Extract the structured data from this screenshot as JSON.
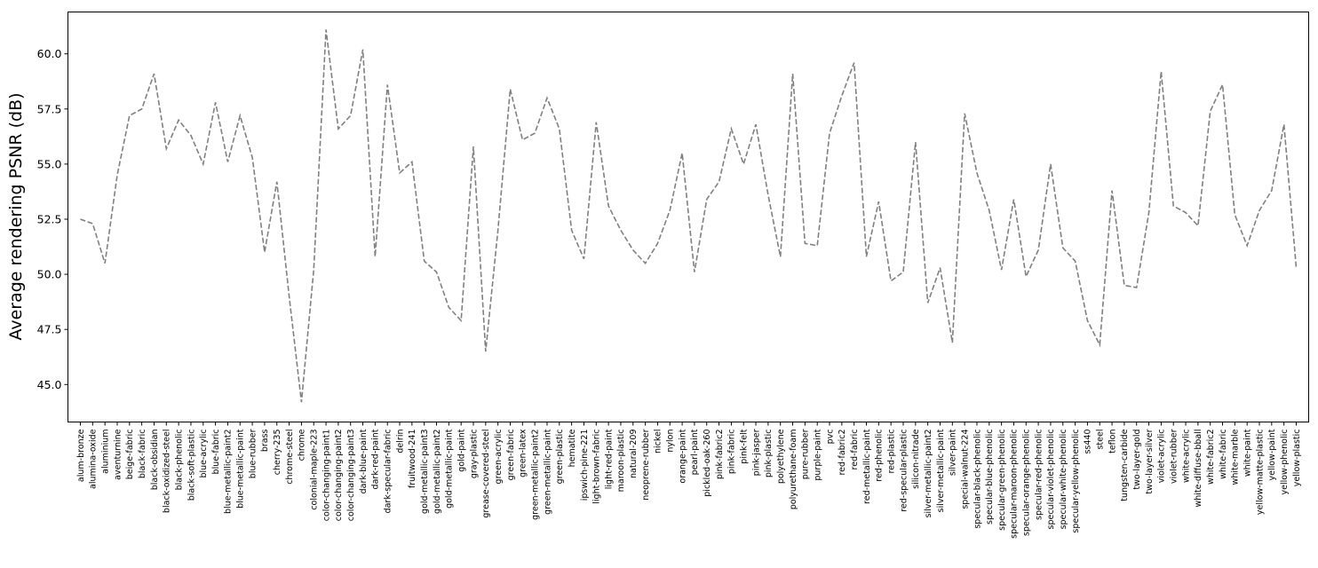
{
  "chart_data": {
    "type": "line",
    "title": "",
    "xlabel": "",
    "ylabel": "Average rendering PSNR (dB)",
    "ylim": [
      43.3,
      61.9
    ],
    "yticks": [
      45.0,
      47.5,
      50.0,
      52.5,
      55.0,
      57.5,
      60.0
    ],
    "grid": false,
    "legend": "none",
    "line_color": "#808080",
    "line_style": "dashed",
    "series": [
      {
        "values": [
          52.5,
          52.3,
          50.5,
          54.5,
          57.2,
          57.5,
          59.1,
          55.7,
          57.0,
          56.3,
          55.0,
          57.8,
          55.1,
          57.2,
          55.3,
          51.0,
          54.2,
          49.0,
          44.2,
          50.2,
          61.1,
          56.6,
          57.2,
          60.2,
          50.8,
          58.6,
          54.6,
          55.1,
          50.6,
          50.1,
          48.5,
          47.9,
          55.8,
          46.5,
          52.0,
          58.4,
          56.1,
          56.4,
          58.0,
          56.6,
          52.0,
          50.7,
          56.9,
          53.1,
          52.0,
          51.1,
          50.5,
          51.4,
          52.9,
          55.5,
          50.1,
          53.4,
          54.2,
          56.6,
          55.0,
          56.8,
          53.6,
          50.8,
          59.1,
          51.4,
          51.3,
          56.4,
          58.1,
          59.6,
          50.8,
          53.3,
          49.7,
          50.1,
          56.0,
          48.7,
          50.3,
          46.9,
          57.3,
          54.6,
          52.9,
          50.2,
          53.4,
          49.9,
          51.1,
          55.0,
          51.2,
          50.6,
          47.9,
          46.8,
          53.8,
          49.5,
          49.4,
          52.8,
          59.2,
          53.1,
          52.8,
          52.2,
          57.4,
          58.6,
          52.7,
          51.3,
          52.9,
          53.8,
          56.8,
          50.3
        ]
      }
    ],
    "categories": [
      "alum-bronze",
      "alumina-oxide",
      "aluminium",
      "aventurnine",
      "beige-fabric",
      "black-fabric",
      "black-obsidian",
      "black-oxidized-steel",
      "black-phenolic",
      "black-soft-plastic",
      "blue-acrylic",
      "blue-fabric",
      "blue-metallic-paint2",
      "blue-metallic-paint",
      "blue-rubber",
      "brass",
      "cherry-235",
      "chrome-steel",
      "chrome",
      "colonial-maple-223",
      "color-changing-paint1",
      "color-changing-paint2",
      "color-changing-paint3",
      "dark-blue-paint",
      "dark-red-paint",
      "dark-specular-fabric",
      "delrin",
      "fruitwood-241",
      "gold-metallic-paint3",
      "gold-metallic-paint2",
      "gold-metallic-paint",
      "gold-paint",
      "gray-plastic",
      "grease-covered-steel",
      "green-acrylic",
      "green-fabric",
      "green-latex",
      "green-metallic-paint2",
      "green-metallic-paint",
      "green-plastic",
      "hematite",
      "ipswich-pine-221",
      "light-brown-fabric",
      "light-red-paint",
      "maroon-plastic",
      "natural-209",
      "neoprene-rubber",
      "nickel",
      "nylon",
      "orange-paint",
      "pearl-paint",
      "pickled-oak-260",
      "pink-fabric2",
      "pink-fabric",
      "pink-felt",
      "pink-jasper",
      "pink-plastic",
      "polyethylene",
      "polyurethane-foam",
      "pure-rubber",
      "purple-paint",
      "pvc",
      "red-fabric2",
      "red-fabric",
      "red-metallic-paint",
      "red-phenolic",
      "red-plastic",
      "red-specular-plastic",
      "silicon-nitrade",
      "silver-metallic-paint2",
      "silver-metallic-paint",
      "silver-paint",
      "special-walnut-224",
      "specular-black-phenolic",
      "specular-blue-phenolic",
      "specular-green-phenolic",
      "specular-maroon-phenolic",
      "specular-orange-phenolic",
      "specular-red-phenolic",
      "specular-violet-phenolic",
      "specular-white-phenolic",
      "specular-yellow-phenolic",
      "ss440",
      "steel",
      "teflon",
      "tungsten-carbide",
      "two-layer-gold",
      "two-layer-silver",
      "violet-acrylic",
      "violet-rubber",
      "white-acrylic",
      "white-diffuse-bball",
      "white-fabric2",
      "white-fabric",
      "white-marble",
      "white-paint",
      "yellow-matte-plastic",
      "yellow-paint",
      "yellow-phenolic",
      "yellow-plastic"
    ]
  }
}
